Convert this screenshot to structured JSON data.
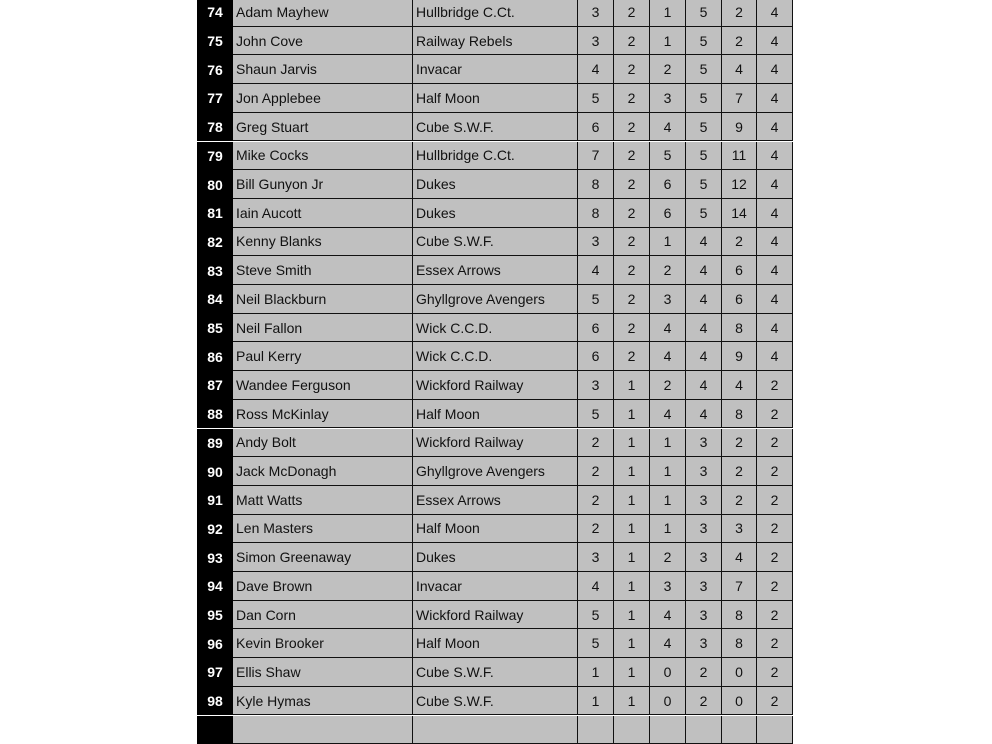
{
  "rows": [
    {
      "rank": "74",
      "name": "Adam Mayhew",
      "team": "Hullbridge C.Ct.",
      "stats": [
        "3",
        "2",
        "1",
        "5",
        "2",
        "4"
      ]
    },
    {
      "rank": "75",
      "name": "John Cove",
      "team": "Railway Rebels",
      "stats": [
        "3",
        "2",
        "1",
        "5",
        "2",
        "4"
      ]
    },
    {
      "rank": "76",
      "name": "Shaun Jarvis",
      "team": "Invacar",
      "stats": [
        "4",
        "2",
        "2",
        "5",
        "4",
        "4"
      ]
    },
    {
      "rank": "77",
      "name": "Jon Applebee",
      "team": "Half Moon",
      "stats": [
        "5",
        "2",
        "3",
        "5",
        "7",
        "4"
      ]
    },
    {
      "rank": "78",
      "name": "Greg Stuart",
      "team": "Cube S.W.F.",
      "stats": [
        "6",
        "2",
        "4",
        "5",
        "9",
        "4"
      ]
    },
    {
      "rank": "79",
      "name": "Mike Cocks",
      "team": "Hullbridge C.Ct.",
      "stats": [
        "7",
        "2",
        "5",
        "5",
        "11",
        "4"
      ]
    },
    {
      "rank": "80",
      "name": "Bill Gunyon Jr",
      "team": "Dukes",
      "stats": [
        "8",
        "2",
        "6",
        "5",
        "12",
        "4"
      ]
    },
    {
      "rank": "81",
      "name": "Iain Aucott",
      "team": "Dukes",
      "stats": [
        "8",
        "2",
        "6",
        "5",
        "14",
        "4"
      ]
    },
    {
      "rank": "82",
      "name": "Kenny Blanks",
      "team": "Cube S.W.F.",
      "stats": [
        "3",
        "2",
        "1",
        "4",
        "2",
        "4"
      ]
    },
    {
      "rank": "83",
      "name": "Steve Smith",
      "team": "Essex Arrows",
      "stats": [
        "4",
        "2",
        "2",
        "4",
        "6",
        "4"
      ]
    },
    {
      "rank": "84",
      "name": "Neil Blackburn",
      "team": "Ghyllgrove Avengers",
      "stats": [
        "5",
        "2",
        "3",
        "4",
        "6",
        "4"
      ]
    },
    {
      "rank": "85",
      "name": "Neil Fallon",
      "team": "Wick C.C.D.",
      "stats": [
        "6",
        "2",
        "4",
        "4",
        "8",
        "4"
      ]
    },
    {
      "rank": "86",
      "name": "Paul Kerry",
      "team": "Wick C.C.D.",
      "stats": [
        "6",
        "2",
        "4",
        "4",
        "9",
        "4"
      ]
    },
    {
      "rank": "87",
      "name": "Wandee Ferguson",
      "team": "Wickford Railway",
      "stats": [
        "3",
        "1",
        "2",
        "4",
        "4",
        "2"
      ]
    },
    {
      "rank": "88",
      "name": "Ross McKinlay",
      "team": "Half Moon",
      "stats": [
        "5",
        "1",
        "4",
        "4",
        "8",
        "2"
      ]
    },
    {
      "rank": "89",
      "name": "Andy Bolt",
      "team": "Wickford Railway",
      "stats": [
        "2",
        "1",
        "1",
        "3",
        "2",
        "2"
      ]
    },
    {
      "rank": "90",
      "name": "Jack McDonagh",
      "team": "Ghyllgrove Avengers",
      "stats": [
        "2",
        "1",
        "1",
        "3",
        "2",
        "2"
      ]
    },
    {
      "rank": "91",
      "name": "Matt Watts",
      "team": "Essex Arrows",
      "stats": [
        "2",
        "1",
        "1",
        "3",
        "2",
        "2"
      ]
    },
    {
      "rank": "92",
      "name": "Len Masters",
      "team": "Half Moon",
      "stats": [
        "2",
        "1",
        "1",
        "3",
        "3",
        "2"
      ]
    },
    {
      "rank": "93",
      "name": "Simon Greenaway",
      "team": "Dukes",
      "stats": [
        "3",
        "1",
        "2",
        "3",
        "4",
        "2"
      ]
    },
    {
      "rank": "94",
      "name": "Dave Brown",
      "team": "Invacar",
      "stats": [
        "4",
        "1",
        "3",
        "3",
        "7",
        "2"
      ]
    },
    {
      "rank": "95",
      "name": "Dan Corn",
      "team": "Wickford Railway",
      "stats": [
        "5",
        "1",
        "4",
        "3",
        "8",
        "2"
      ]
    },
    {
      "rank": "96",
      "name": "Kevin Brooker",
      "team": "Half Moon",
      "stats": [
        "5",
        "1",
        "4",
        "3",
        "8",
        "2"
      ]
    },
    {
      "rank": "97",
      "name": "Ellis Shaw",
      "team": "Cube S.W.F.",
      "stats": [
        "1",
        "1",
        "0",
        "2",
        "0",
        "2"
      ]
    },
    {
      "rank": "98",
      "name": "Kyle Hymas",
      "team": "Cube S.W.F.",
      "stats": [
        "1",
        "1",
        "0",
        "2",
        "0",
        "2"
      ]
    },
    {
      "rank": "",
      "name": "",
      "team": "",
      "stats": [
        "",
        "",
        "",
        "",
        "",
        ""
      ]
    }
  ]
}
